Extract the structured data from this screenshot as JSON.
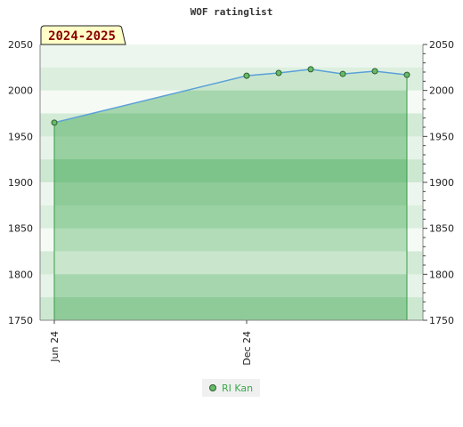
{
  "chart_data": {
    "type": "area",
    "title": "WOF ratinglist",
    "badge": "2024-2025",
    "ylim": [
      1750,
      2050
    ],
    "y_ticks": [
      1750,
      1800,
      1850,
      1900,
      1950,
      2000,
      2050
    ],
    "y_axis_sides": [
      "left",
      "right"
    ],
    "x_ticks": [
      {
        "label": "Jun 24",
        "x": "2024-06"
      },
      {
        "label": "Dec 24",
        "x": "2024-12"
      }
    ],
    "series": [
      {
        "name": "RI Kan",
        "color": "#66bb6a",
        "points": [
          {
            "x": "2024-06",
            "y": 1965
          },
          {
            "x": "2024-12",
            "y": 2016
          },
          {
            "x": "2025-01",
            "y": 2019
          },
          {
            "x": "2025-02",
            "y": 2023
          },
          {
            "x": "2025-03",
            "y": 2018
          },
          {
            "x": "2025-04",
            "y": 2021
          },
          {
            "x": "2025-05",
            "y": 2017
          }
        ]
      }
    ],
    "grid": true,
    "legend_position": "bottom"
  }
}
